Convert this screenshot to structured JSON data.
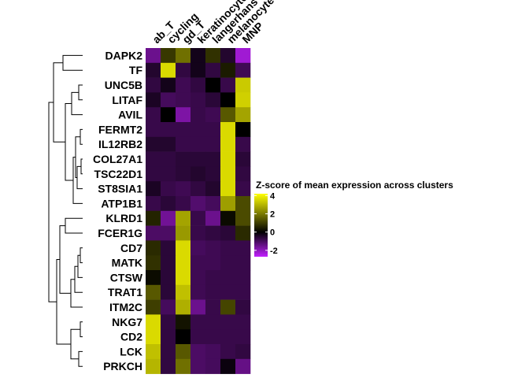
{
  "chart_data": {
    "type": "heatmap",
    "columns": [
      "ab_T",
      "cycling",
      "gd_T",
      "keratinocyte",
      "langerhans",
      "melanocyte",
      "MNP"
    ],
    "rows": [
      "DAPK2",
      "TF",
      "UNC5B",
      "LITAF",
      "AVIL",
      "FERMT2",
      "IL12RB2",
      "COL27A1",
      "TSC22D1",
      "ST8SIA1",
      "ATP1B1",
      "KLRD1",
      "FCER1G",
      "CD7",
      "MATK",
      "CTSW",
      "TRAT1",
      "ITM2C",
      "NKG7",
      "CD2",
      "LCK",
      "PRKCH"
    ],
    "values": [
      [
        -1.5,
        0.7,
        1.6,
        -0.2,
        0.6,
        -0.4,
        -2.4
      ],
      [
        -0.4,
        3.5,
        -0.6,
        -0.2,
        -0.6,
        0.3,
        -0.8
      ],
      [
        -0.6,
        -0.2,
        -0.8,
        -0.6,
        0.0,
        -0.7,
        3.2
      ],
      [
        -0.3,
        -0.9,
        -0.8,
        -0.7,
        -0.5,
        0.0,
        3.3
      ],
      [
        -0.7,
        0.0,
        -1.8,
        -0.7,
        -0.8,
        1.2,
        2.5
      ],
      [
        -0.7,
        -0.7,
        -0.7,
        -0.7,
        -0.7,
        3.5,
        0.0
      ],
      [
        -0.4,
        -0.4,
        -0.7,
        -0.7,
        -0.7,
        3.5,
        -0.7
      ],
      [
        -0.6,
        -0.6,
        -0.5,
        -0.5,
        -0.5,
        3.5,
        -0.5
      ],
      [
        -0.6,
        -0.6,
        -0.5,
        -0.4,
        -0.5,
        3.5,
        -0.6
      ],
      [
        -0.3,
        -0.7,
        -0.8,
        -0.6,
        -0.4,
        3.5,
        -0.7
      ],
      [
        -0.7,
        -0.5,
        -0.7,
        -1.1,
        -0.9,
        2.4,
        1.0
      ],
      [
        0.4,
        -1.6,
        2.5,
        -0.7,
        -1.5,
        0.1,
        1.0
      ],
      [
        -1.0,
        -1.0,
        2.3,
        -0.7,
        -0.6,
        -0.5,
        0.5
      ],
      [
        0.5,
        -0.5,
        3.5,
        -0.9,
        -0.8,
        -0.7,
        -0.7
      ],
      [
        0.6,
        -0.5,
        3.5,
        -0.8,
        -0.8,
        -0.7,
        -0.7
      ],
      [
        0.1,
        -0.5,
        3.5,
        -0.8,
        -0.7,
        -0.7,
        -0.7
      ],
      [
        1.2,
        -0.5,
        3.0,
        -0.8,
        -0.7,
        -0.7,
        -0.7
      ],
      [
        0.8,
        -0.9,
        2.7,
        -1.5,
        -0.7,
        0.9,
        -0.6
      ],
      [
        3.5,
        -0.6,
        0.2,
        -0.7,
        -0.7,
        -0.7,
        -0.7
      ],
      [
        3.5,
        -0.6,
        0.0,
        -0.7,
        -0.7,
        -0.7,
        -0.7
      ],
      [
        3.0,
        -0.6,
        1.2,
        -1.0,
        -0.9,
        -0.7,
        -0.6
      ],
      [
        2.8,
        -0.6,
        1.6,
        -1.0,
        -0.9,
        -0.1,
        -1.4
      ]
    ],
    "legend": {
      "title": "Z-score of mean expression across clusters",
      "ticks": [
        4,
        2,
        0,
        -2
      ],
      "range": [
        -2.7,
        4.2
      ],
      "colors": [
        "#c11fff",
        "#000000",
        "#ffff00"
      ]
    },
    "dendrogram": "row-clustering"
  }
}
